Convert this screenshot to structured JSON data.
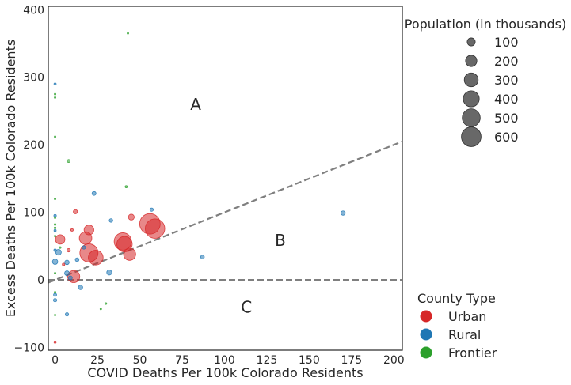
{
  "chart_data": {
    "type": "scatter",
    "title": "",
    "xlabel": "COVID Deaths Per 100k Colorado Residents",
    "ylabel": "Excess Deaths Per 100k Colorado Residents",
    "xlim": [
      -4,
      205
    ],
    "ylim": [
      -104,
      405
    ],
    "xticks": [
      0,
      25,
      50,
      75,
      100,
      125,
      150,
      175,
      200
    ],
    "yticks": [
      -100,
      0,
      100,
      200,
      300,
      400
    ],
    "grid": false,
    "reference_lines": [
      {
        "name": "y = x",
        "slope": 1,
        "intercept": 0,
        "style": "dashed",
        "color": "#7f7f7f"
      },
      {
        "name": "y = 0",
        "slope": 0,
        "intercept": 0,
        "style": "dashed",
        "color": "#7f7f7f"
      }
    ],
    "region_labels": [
      {
        "text": "A",
        "x": 83,
        "y": 258
      },
      {
        "text": "B",
        "x": 133,
        "y": 57
      },
      {
        "text": "C",
        "x": 113,
        "y": -42
      }
    ],
    "size_legend": {
      "title": "Population (in thousands)",
      "values": [
        100,
        200,
        300,
        400,
        500,
        600
      ],
      "labels": [
        "100",
        "200",
        "300",
        "400",
        "500",
        "600"
      ]
    },
    "series": [
      {
        "name": "Urban",
        "color": "#d62728",
        "points": [
          {
            "x": 56,
            "y": 83,
            "pop": 655
          },
          {
            "x": 59,
            "y": 76,
            "pop": 590
          },
          {
            "x": 40,
            "y": 57,
            "pop": 470
          },
          {
            "x": 41,
            "y": 53,
            "pop": 370
          },
          {
            "x": 20,
            "y": 40,
            "pop": 515
          },
          {
            "x": 24,
            "y": 33,
            "pop": 340
          },
          {
            "x": 44,
            "y": 38,
            "pop": 230
          },
          {
            "x": 18,
            "y": 62,
            "pop": 245
          },
          {
            "x": 20,
            "y": 74,
            "pop": 150
          },
          {
            "x": 11,
            "y": 5,
            "pop": 230
          },
          {
            "x": 3,
            "y": 60,
            "pop": 140
          },
          {
            "x": 45,
            "y": 93,
            "pop": 55
          },
          {
            "x": 12,
            "y": 101,
            "pop": 28
          },
          {
            "x": 8,
            "y": 44,
            "pop": 18
          },
          {
            "x": 10,
            "y": 74,
            "pop": 10
          },
          {
            "x": 5,
            "y": 23,
            "pop": 10
          },
          {
            "x": 0,
            "y": -92,
            "pop": 8
          }
        ]
      },
      {
        "name": "Rural",
        "color": "#1f77b4",
        "points": [
          {
            "x": 170,
            "y": 99,
            "pop": 30
          },
          {
            "x": 87,
            "y": 34,
            "pop": 22
          },
          {
            "x": 57,
            "y": 104,
            "pop": 18
          },
          {
            "x": 23,
            "y": 128,
            "pop": 25
          },
          {
            "x": 33,
            "y": 88,
            "pop": 20
          },
          {
            "x": 32,
            "y": 11,
            "pop": 40
          },
          {
            "x": 0,
            "y": 27,
            "pop": 45
          },
          {
            "x": 2,
            "y": 41,
            "pop": 50
          },
          {
            "x": 7,
            "y": 26,
            "pop": 32
          },
          {
            "x": 7,
            "y": 10,
            "pop": 35
          },
          {
            "x": 15,
            "y": -11,
            "pop": 30
          },
          {
            "x": 13,
            "y": 30,
            "pop": 22
          },
          {
            "x": 17,
            "y": 48,
            "pop": 18
          },
          {
            "x": 9,
            "y": 3,
            "pop": 25
          },
          {
            "x": 0,
            "y": -30,
            "pop": 18
          },
          {
            "x": 0,
            "y": -22,
            "pop": 15
          },
          {
            "x": 7,
            "y": -51,
            "pop": 18
          },
          {
            "x": 0,
            "y": 95,
            "pop": 10
          },
          {
            "x": 0,
            "y": 290,
            "pop": 8
          },
          {
            "x": 0,
            "y": 73,
            "pop": 8
          },
          {
            "x": 0,
            "y": 44,
            "pop": 10
          }
        ]
      },
      {
        "name": "Frontier",
        "color": "#2ca02c",
        "points": [
          {
            "x": 43,
            "y": 365,
            "pop": 4
          },
          {
            "x": 0,
            "y": 275,
            "pop": 4
          },
          {
            "x": 0,
            "y": 270,
            "pop": 4
          },
          {
            "x": 0,
            "y": 212,
            "pop": 3
          },
          {
            "x": 8,
            "y": 176,
            "pop": 14
          },
          {
            "x": 42,
            "y": 138,
            "pop": 8
          },
          {
            "x": 0,
            "y": 120,
            "pop": 3
          },
          {
            "x": 0,
            "y": 92,
            "pop": 4
          },
          {
            "x": 0,
            "y": 82,
            "pop": 5
          },
          {
            "x": 0,
            "y": 77,
            "pop": 5
          },
          {
            "x": 0,
            "y": 65,
            "pop": 4
          },
          {
            "x": 3,
            "y": 48,
            "pop": 5
          },
          {
            "x": 0,
            "y": 10,
            "pop": 4
          },
          {
            "x": 0,
            "y": -18,
            "pop": 4
          },
          {
            "x": 30,
            "y": -35,
            "pop": 5
          },
          {
            "x": 27,
            "y": -43,
            "pop": 4
          },
          {
            "x": 0,
            "y": -52,
            "pop": 3
          }
        ]
      }
    ],
    "color_legend": {
      "title": "County Type",
      "entries": [
        {
          "label": "Urban",
          "color": "#d62728"
        },
        {
          "label": "Rural",
          "color": "#1f77b4"
        },
        {
          "label": "Frontier",
          "color": "#2ca02c"
        }
      ]
    }
  }
}
